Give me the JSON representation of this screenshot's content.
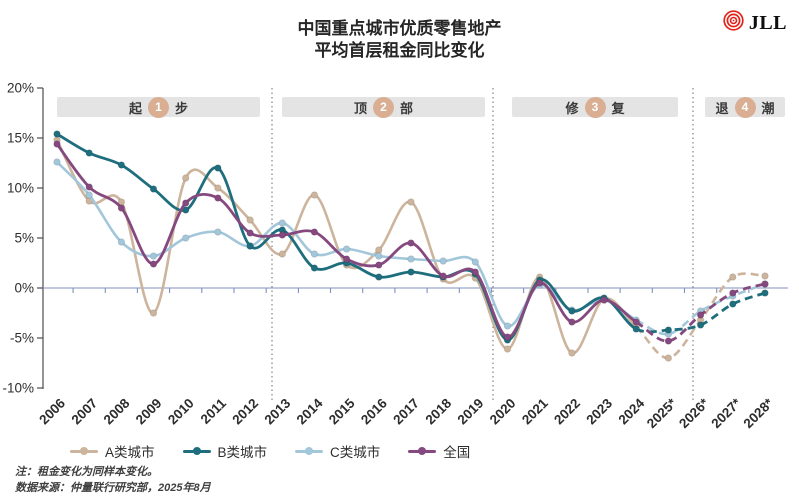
{
  "header": {
    "title_line1": "中国重点城市优质零售地产",
    "title_line2": "平均首层租金同比变化",
    "logo_text": "JLL"
  },
  "phases": [
    {
      "pre": "起",
      "num": "1",
      "post": "步"
    },
    {
      "pre": "顶",
      "num": "2",
      "post": "部"
    },
    {
      "pre": "修",
      "num": "3",
      "post": "复"
    },
    {
      "pre": "退",
      "num": "4",
      "post": "潮"
    }
  ],
  "chart_data": {
    "type": "line",
    "title": "中国重点城市优质零售地产 平均首层租金同比变化",
    "categories": [
      "2006",
      "2007",
      "2008",
      "2009",
      "2010",
      "2011",
      "2012",
      "2013",
      "2014",
      "2015",
      "2016",
      "2017",
      "2018",
      "2019",
      "2020",
      "2021",
      "2022",
      "2023",
      "2024",
      "2025*",
      "2026*",
      "2027*",
      "2028*"
    ],
    "series": [
      {
        "name": "A类城市",
        "color": "#cdb49c",
        "values": [
          14.8,
          8.7,
          8.6,
          -2.5,
          11.0,
          10.0,
          6.8,
          3.4,
          9.3,
          2.3,
          3.8,
          8.6,
          0.9,
          1.0,
          -6.1,
          1.1,
          -6.5,
          -1.1,
          -3.9,
          -7.0,
          -3.2,
          1.1,
          1.2
        ]
      },
      {
        "name": "B类城市",
        "color": "#1e6e7e",
        "values": [
          15.4,
          13.5,
          12.3,
          9.9,
          7.8,
          12.0,
          4.2,
          5.8,
          2.0,
          2.5,
          1.1,
          1.6,
          1.1,
          1.4,
          -5.2,
          0.8,
          -2.3,
          -1.0,
          -4.1,
          -4.2,
          -3.7,
          -1.6,
          -0.5
        ]
      },
      {
        "name": "C类城市",
        "color": "#a3c7da",
        "values": [
          12.6,
          9.3,
          4.6,
          3.2,
          5.0,
          5.6,
          4.2,
          6.5,
          3.4,
          3.9,
          3.2,
          2.9,
          2.7,
          2.6,
          -3.8,
          0.3,
          -2.2,
          -1.2,
          -3.2,
          -4.6,
          -2.3,
          -0.8,
          0.4
        ]
      },
      {
        "name": "全国",
        "color": "#85497f",
        "values": [
          14.4,
          10.1,
          8.0,
          2.4,
          8.5,
          9.0,
          5.5,
          5.3,
          5.6,
          2.9,
          2.3,
          4.5,
          1.2,
          1.6,
          -4.9,
          0.5,
          -3.4,
          -1.2,
          -3.4,
          -5.3,
          -2.7,
          -0.5,
          0.4
        ]
      }
    ],
    "y_tick_labels": [
      "20%",
      "15%",
      "10%",
      "5%",
      "0%",
      "-5%",
      "-10%"
    ],
    "y_ticks": [
      20,
      15,
      10,
      5,
      0,
      -5,
      -10
    ],
    "ylim": [
      -10,
      20
    ],
    "forecast_start_index": 18,
    "grid": false,
    "legend_position": "bottom",
    "phase_labels": [
      "起1步",
      "顶2部",
      "修3复",
      "退4潮"
    ],
    "zero_line_color": "#8090bf",
    "axis_color": "#4d4d4d",
    "divider_color": "#6b6b6b"
  },
  "footnotes": {
    "note": "注：租金变化为同样本变化。",
    "source": "数据来源：仲量联行研究部，2025年8月"
  }
}
